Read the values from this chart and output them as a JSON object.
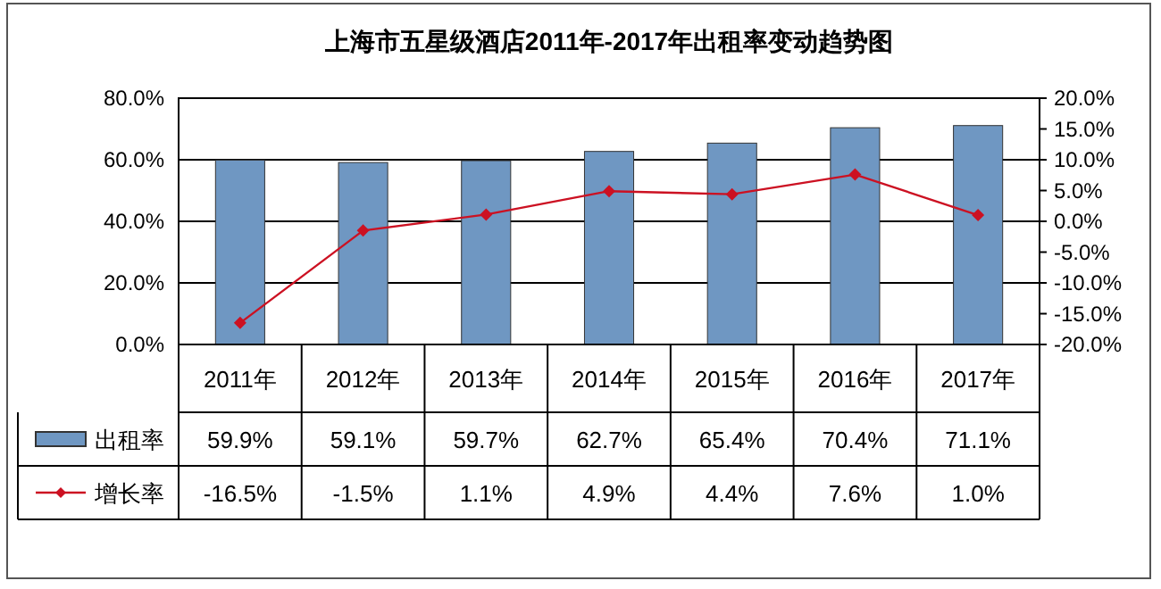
{
  "chart_data": {
    "type": "bar",
    "title": "上海市五星级酒店2011年-2017年出租率变动趋势图",
    "categories": [
      "2011年",
      "2012年",
      "2013年",
      "2014年",
      "2015年",
      "2016年",
      "2017年"
    ],
    "series": [
      {
        "name": "出租率",
        "color": "#6f97c2",
        "values": [
          59.9,
          59.1,
          59.7,
          62.7,
          65.4,
          70.4,
          71.1
        ],
        "value_labels": [
          "59.9%",
          "59.1%",
          "59.7%",
          "62.7%",
          "65.4%",
          "70.4%",
          "71.1%"
        ]
      },
      {
        "name": "增长率",
        "type": "line",
        "axis": "y2",
        "color": "#cc1122",
        "marker": "diamond",
        "values": [
          -16.5,
          -1.5,
          1.1,
          4.9,
          4.4,
          7.6,
          1.0
        ],
        "value_labels": [
          "-16.5%",
          "-1.5%",
          "1.1%",
          "4.9%",
          "4.4%",
          "7.6%",
          "1.0%"
        ]
      }
    ],
    "ylim": [
      0,
      80
    ],
    "yticks": [
      {
        "value": 0,
        "label": "0.0%"
      },
      {
        "value": 20,
        "label": "20.0%"
      },
      {
        "value": 40,
        "label": "40.0%"
      },
      {
        "value": 60,
        "label": "60.0%"
      },
      {
        "value": 80,
        "label": "80.0%"
      }
    ],
    "y2lim": [
      -20,
      20
    ],
    "y2ticks": [
      {
        "value": -20,
        "label": "-20.0%"
      },
      {
        "value": -15,
        "label": "-15.0%"
      },
      {
        "value": -10,
        "label": "-10.0%"
      },
      {
        "value": -5,
        "label": "-5.0%"
      },
      {
        "value": 0,
        "label": "0.0%"
      },
      {
        "value": 5,
        "label": "5.0%"
      },
      {
        "value": 10,
        "label": "10.0%"
      },
      {
        "value": 15,
        "label": "15.0%"
      },
      {
        "value": 20,
        "label": "20.0%"
      }
    ],
    "grid": "y",
    "legend": "bottom left"
  }
}
